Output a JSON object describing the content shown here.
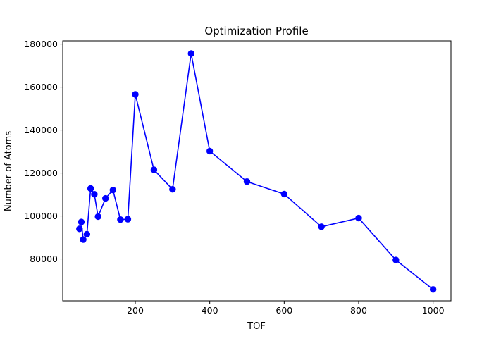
{
  "chart_data": {
    "type": "line",
    "title": "Optimization Profile",
    "xlabel": "TOF",
    "ylabel": "Number of Atoms",
    "xlim": [
      5,
      1048
    ],
    "ylim": [
      60500,
      181500
    ],
    "xticks": [
      200,
      400,
      600,
      800,
      1000
    ],
    "yticks": [
      80000,
      100000,
      120000,
      140000,
      160000,
      180000
    ],
    "grid": false,
    "legend": null,
    "series": [
      {
        "color": "#0000ff",
        "marker": "circle",
        "points": [
          {
            "x": 50,
            "y": 94000
          },
          {
            "x": 55,
            "y": 97200
          },
          {
            "x": 60,
            "y": 89000
          },
          {
            "x": 70,
            "y": 91500
          },
          {
            "x": 80,
            "y": 112800
          },
          {
            "x": 90,
            "y": 110100
          },
          {
            "x": 100,
            "y": 99700
          },
          {
            "x": 120,
            "y": 108200
          },
          {
            "x": 140,
            "y": 112100
          },
          {
            "x": 160,
            "y": 98300
          },
          {
            "x": 180,
            "y": 98500
          },
          {
            "x": 200,
            "y": 156600
          },
          {
            "x": 250,
            "y": 121500
          },
          {
            "x": 300,
            "y": 112400
          },
          {
            "x": 350,
            "y": 175600
          },
          {
            "x": 400,
            "y": 130200
          },
          {
            "x": 500,
            "y": 116000
          },
          {
            "x": 600,
            "y": 110200
          },
          {
            "x": 700,
            "y": 95000
          },
          {
            "x": 800,
            "y": 99000
          },
          {
            "x": 900,
            "y": 79500
          },
          {
            "x": 1000,
            "y": 65800
          }
        ]
      }
    ]
  }
}
